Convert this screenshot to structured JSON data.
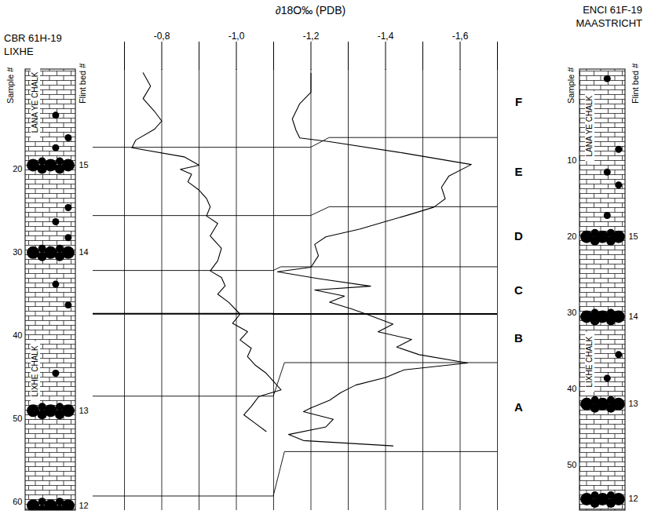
{
  "chart_data": {
    "type": "line",
    "title": "∂18O‰ (PDB)",
    "xlim": [
      -0.7,
      -1.7
    ],
    "xticks": [
      {
        "value": -0.8,
        "label": "-0,8"
      },
      {
        "value": -1.0,
        "label": "-1,0"
      },
      {
        "value": -1.2,
        "label": "-1,2"
      },
      {
        "value": -1.4,
        "label": "-1,4"
      },
      {
        "value": -1.6,
        "label": "-1,6"
      }
    ],
    "minor_xticks": [
      -0.7,
      -0.9,
      -1.1,
      -1.3,
      -1.5,
      -1.7
    ],
    "grid": true,
    "columns": [
      {
        "title": "CBR 61H-19",
        "subtitle": "LIXHE",
        "sample_label": "Sample #",
        "flint_label": "Flint bed #",
        "ylim": [
          8,
          61
        ],
        "yticks": [
          20,
          30,
          40,
          50,
          60
        ],
        "units": [
          {
            "text": "LANA YE CHALK",
            "sample": 12
          },
          {
            "text": "LIXHE CHALK",
            "sample": 44.3
          }
        ],
        "flint_beds": [
          {
            "label": "15",
            "sample": 19.5
          },
          {
            "label": "14",
            "sample": 30
          },
          {
            "label": "13",
            "sample": 49
          },
          {
            "label": "12",
            "sample": 60.4
          }
        ],
        "nodules": [
          13.5,
          16.2,
          17.4,
          24.6,
          26.3,
          28.2,
          33.8,
          36.3,
          44.5
        ]
      },
      {
        "title": "ENCI 61F-19",
        "subtitle": "MAASTRICHT",
        "sample_label": "Sample #",
        "flint_label": "Flint bed #",
        "ylim": [
          -2,
          56
        ],
        "yticks": [
          10,
          20,
          30,
          40,
          50
        ],
        "units": [
          {
            "text": "LANA YE CHALK",
            "sample": 5.5
          },
          {
            "text": "LIXHE CHALK",
            "sample": 36.5
          }
        ],
        "flint_beds": [
          {
            "label": "15",
            "sample": 20
          },
          {
            "label": "14",
            "sample": 30.5
          },
          {
            "label": "13",
            "sample": 42
          },
          {
            "label": "12",
            "sample": 54.5
          }
        ],
        "nodules": [
          -0.8,
          8.5,
          11.5,
          13.2,
          17.2,
          35.5,
          38.6
        ],
        "zones": [
          {
            "label": "F",
            "sample": 2.3
          },
          {
            "label": "E",
            "sample": 11.5
          },
          {
            "label": "D",
            "sample": 20.0
          },
          {
            "label": "C",
            "sample": 27.1
          },
          {
            "label": "B",
            "sample": 33.4
          },
          {
            "label": "A",
            "sample": 42.4
          }
        ]
      }
    ],
    "boundaries": [
      {
        "samples": [
          17.4,
          7.0
        ],
        "x_break": [
          -1.2,
          -1.25
        ],
        "line_style": "solid"
      },
      {
        "samples": [
          25.6,
          16.1
        ],
        "x_break": [
          -1.2,
          -1.25
        ],
        "line_style": "solid"
      },
      {
        "samples": [
          32.2,
          24.0
        ],
        "x_break": [
          -1.1,
          -1.12
        ],
        "line_style": "solid"
      },
      {
        "samples": [
          37.4,
          30.2
        ],
        "x_break": [
          -1.1,
          -1.1
        ],
        "line_style": "bold"
      },
      {
        "samples": [
          47.3,
          36.6
        ],
        "x_break": [
          -1.1,
          -1.13
        ],
        "line_style": "solid"
      },
      {
        "samples": [
          59.3,
          48.3
        ],
        "x_break": [
          -1.1,
          -1.13
        ],
        "line_style": "solid"
      }
    ],
    "series": [
      {
        "name": "CBR 61H-19",
        "color": "#000000",
        "sample": [
          8.4,
          10,
          11.5,
          13,
          14.2,
          15.2,
          16.5,
          17.4,
          18.5,
          19.5,
          20,
          20.6,
          21.5,
          22.5,
          23.5,
          24.5,
          25.6,
          26.5,
          28,
          29.5,
          31,
          32.2,
          33,
          34,
          35,
          36,
          37.4,
          38.5,
          39.5,
          40.5,
          41.5,
          42.5,
          43.5,
          44.5,
          45.5,
          46.5,
          47.3,
          48.5,
          49.5,
          50.5,
          51.5
        ],
        "values": [
          -0.75,
          -0.77,
          -0.75,
          -0.78,
          -0.8,
          -0.78,
          -0.73,
          -0.72,
          -0.86,
          -0.9,
          -0.85,
          -0.88,
          -0.87,
          -0.9,
          -0.92,
          -0.93,
          -0.92,
          -0.95,
          -0.93,
          -0.96,
          -0.95,
          -0.93,
          -0.96,
          -0.97,
          -0.95,
          -0.98,
          -1.01,
          -0.99,
          -1.03,
          -1.01,
          -1.04,
          -1.03,
          -1.05,
          -1.08,
          -1.1,
          -1.12,
          -1.06,
          -1.04,
          -1.02,
          -1.05,
          -1.08
        ]
      },
      {
        "name": "ENCI 61F-19",
        "color": "#000000",
        "sample": [
          -1.5,
          1,
          2.5,
          4.5,
          6,
          7,
          7.5,
          9,
          10.5,
          12,
          13.5,
          15,
          16.1,
          17,
          18,
          19,
          20,
          21,
          22.5,
          24,
          24.6,
          25.5,
          26.5,
          27,
          27.8,
          28.6,
          29.5,
          30.2,
          31.5,
          32.5,
          33.5,
          34.5,
          35.5,
          36.6,
          37.5,
          38.5,
          39.5,
          40.5,
          41.5,
          42.5,
          43,
          44,
          45,
          46,
          46.8,
          47.5
        ],
        "values": [
          -1.2,
          -1.2,
          -1.17,
          -1.15,
          -1.16,
          -1.17,
          -1.25,
          -1.45,
          -1.63,
          -1.57,
          -1.55,
          -1.56,
          -1.53,
          -1.47,
          -1.4,
          -1.33,
          -1.24,
          -1.21,
          -1.22,
          -1.2,
          -1.11,
          -1.22,
          -1.36,
          -1.21,
          -1.29,
          -1.25,
          -1.31,
          -1.35,
          -1.42,
          -1.38,
          -1.47,
          -1.43,
          -1.49,
          -1.62,
          -1.45,
          -1.4,
          -1.32,
          -1.28,
          -1.25,
          -1.2,
          -1.18,
          -1.26,
          -1.24,
          -1.14,
          -1.18,
          -1.42
        ]
      }
    ]
  }
}
